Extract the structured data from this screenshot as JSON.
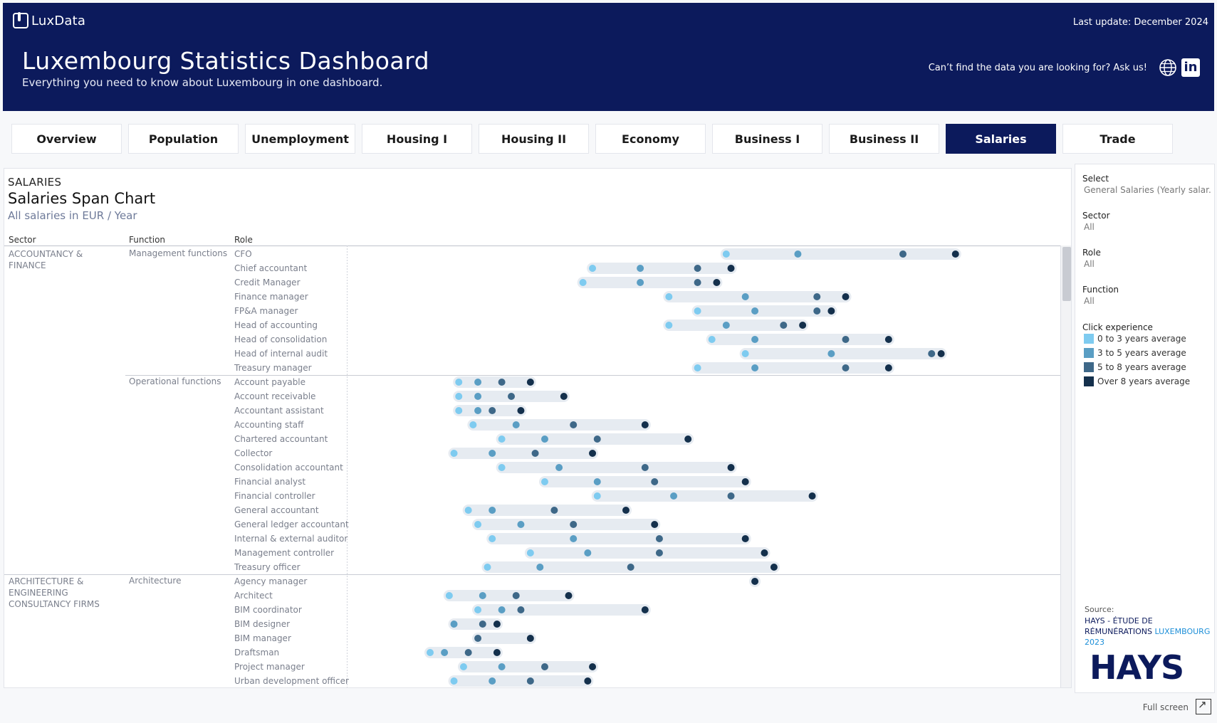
{
  "header": {
    "logo_text": "LuxData",
    "last_update": "Last update: December 2024",
    "title": "Luxembourg Statistics Dashboard",
    "subtitle": "Everything you need to know about Luxembourg in one dashboard.",
    "ask": "Can’t find the data you are looking for? Ask us!"
  },
  "tabs": [
    "Overview",
    "Population",
    "Unemployment",
    "Housing I",
    "Housing II",
    "Economy",
    "Business I",
    "Business II",
    "Salaries",
    "Trade"
  ],
  "active_tab": "Salaries",
  "section": {
    "kicker": "SALARIES",
    "title": "Salaries Span Chart",
    "subtitle": "All salaries in EUR / Year",
    "col_sector": "Sector",
    "col_function": "Function",
    "col_role": "Role"
  },
  "filters": {
    "select_title": "Select",
    "select_value": "General Salaries (Yearly salar..",
    "sector_title": "Sector",
    "sector_value": "All",
    "role_title": "Role",
    "role_value": "All",
    "function_title": "Function",
    "function_value": "All",
    "legend_title": "Click experience",
    "legend": [
      {
        "label": "0 to 3 years average",
        "color": "#7ecbf0"
      },
      {
        "label": "3 to 5 years average",
        "color": "#5a9ec4"
      },
      {
        "label": "5 to 8 years average",
        "color": "#3e6888"
      },
      {
        "label": "Over 8 years average",
        "color": "#14304c"
      }
    ]
  },
  "source": {
    "label": "Source:",
    "text_a": "HAYS - ÉTUDE DE RÉMUNÉRATIONS ",
    "text_b": "LUXEMBOURG 2023",
    "logo": "HAYS"
  },
  "fullscreen": "Full screen",
  "chart_data": {
    "type": "scatter",
    "title": "Salaries Span Chart",
    "subtitle": "All salaries in EUR / Year",
    "series": [
      {
        "name": "0 to 3 years average"
      },
      {
        "name": "3 to 5 years average"
      },
      {
        "name": "5 to 8 years average"
      },
      {
        "name": "Over 8 years average"
      }
    ],
    "groups": [
      {
        "sector": "ACCOUNTANCY & FINANCE",
        "function": "Management functions",
        "rows": [
          {
            "role": "CFO",
            "values": [
              129,
              144,
              166,
              177
            ]
          },
          {
            "role": "Chief accountant",
            "values": [
              101,
              111,
              123,
              130
            ]
          },
          {
            "role": "Credit Manager",
            "values": [
              99,
              111,
              123,
              127
            ]
          },
          {
            "role": "Finance manager",
            "values": [
              117,
              133,
              148,
              154
            ]
          },
          {
            "role": "FP&A manager",
            "values": [
              123,
              135,
              148,
              151
            ]
          },
          {
            "role": "Head of accounting",
            "values": [
              117,
              129,
              141,
              145
            ]
          },
          {
            "role": "Head of consolidation",
            "values": [
              126,
              135,
              154,
              163
            ]
          },
          {
            "role": "Head of internal audit",
            "values": [
              133,
              151,
              172,
              174
            ]
          },
          {
            "role": "Treasury manager",
            "values": [
              123,
              135,
              154,
              163
            ]
          }
        ]
      },
      {
        "sector": "",
        "function": "Operational functions",
        "rows": [
          {
            "role": "Account payable",
            "values": [
              73,
              77,
              82,
              88
            ]
          },
          {
            "role": "Account receivable",
            "values": [
              73,
              77,
              84,
              95
            ]
          },
          {
            "role": "Accountant assistant",
            "values": [
              73,
              77,
              80,
              86
            ]
          },
          {
            "role": "Accounting staff",
            "values": [
              76,
              85,
              97,
              112
            ]
          },
          {
            "role": "Chartered accountant",
            "values": [
              82,
              91,
              102,
              121
            ]
          },
          {
            "role": "Collector",
            "values": [
              72,
              80,
              89,
              101
            ]
          },
          {
            "role": "Consolidation accountant",
            "values": [
              82,
              94,
              112,
              130
            ]
          },
          {
            "role": "Financial analyst",
            "values": [
              91,
              102,
              114,
              133
            ]
          },
          {
            "role": "Financial controller",
            "values": [
              102,
              118,
              130,
              147
            ]
          },
          {
            "role": "General accountant",
            "values": [
              75,
              80,
              93,
              108
            ]
          },
          {
            "role": "General ledger accountant",
            "values": [
              77,
              86,
              97,
              114
            ]
          },
          {
            "role": "Internal & external auditor",
            "values": [
              80,
              97,
              115,
              133
            ]
          },
          {
            "role": "Management controller",
            "values": [
              88,
              100,
              115,
              137
            ]
          },
          {
            "role": "Treasury officer",
            "values": [
              79,
              90,
              109,
              139
            ]
          }
        ]
      },
      {
        "sector": "ARCHITECTURE & ENGINEERING CONSULTANCY FIRMS",
        "function": "Architecture",
        "rows": [
          {
            "role": "Agency manager",
            "values": [
              135
            ]
          },
          {
            "role": "Architect",
            "values": [
              71,
              78,
              85,
              96
            ]
          },
          {
            "role": "BIM coordinator",
            "values": [
              77,
              82,
              86,
              112
            ]
          },
          {
            "role": "BIM designer",
            "values": [
              72,
              78,
              81
            ]
          },
          {
            "role": "BIM manager",
            "values": [
              77,
              88
            ]
          },
          {
            "role": "Draftsman",
            "values": [
              67,
              70,
              75,
              81
            ]
          },
          {
            "role": "Project manager",
            "values": [
              74,
              82,
              91,
              101
            ]
          },
          {
            "role": "Urban development officer",
            "values": [
              72,
              80,
              88,
              100
            ]
          }
        ]
      }
    ]
  }
}
